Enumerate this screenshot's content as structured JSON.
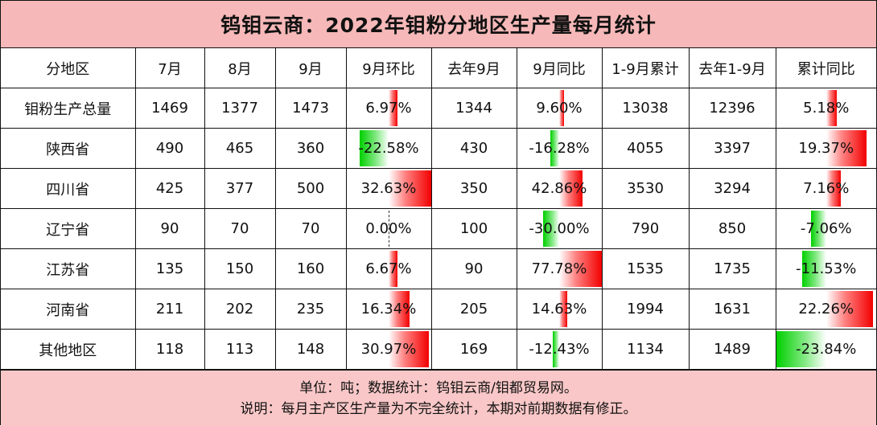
{
  "title": "钨钼云商：2022年钼粉分地区生产量每月统计",
  "header": [
    "分地区",
    "7月",
    "8月",
    "9月",
    "9月环比",
    "去年9月",
    "9月同比",
    "1-9月累计",
    "去年1-9月",
    "累计同比"
  ],
  "rows": [
    {
      "region": "钼粉生产总量",
      "m7": "1469",
      "m8": "1377",
      "m9": "1473",
      "mom": "6.97%",
      "ly9": "1344",
      "yoy": "9.60%",
      "cum": "13038",
      "lycum": "12396",
      "cumyoy": "5.18%"
    },
    {
      "region": "陕西省",
      "m7": "490",
      "m8": "465",
      "m9": "360",
      "mom": "-22.58%",
      "ly9": "430",
      "yoy": "-16.28%",
      "cum": "4055",
      "lycum": "3397",
      "cumyoy": "19.37%"
    },
    {
      "region": "四川省",
      "m7": "425",
      "m8": "377",
      "m9": "500",
      "mom": "32.63%",
      "ly9": "350",
      "yoy": "42.86%",
      "cum": "3530",
      "lycum": "3294",
      "cumyoy": "7.16%"
    },
    {
      "region": "辽宁省",
      "m7": "90",
      "m8": "70",
      "m9": "70",
      "mom": "0.00%",
      "ly9": "100",
      "yoy": "-30.00%",
      "cum": "790",
      "lycum": "850",
      "cumyoy": "-7.06%"
    },
    {
      "region": "江苏省",
      "m7": "135",
      "m8": "150",
      "m9": "160",
      "mom": "6.67%",
      "ly9": "90",
      "yoy": "77.78%",
      "cum": "1535",
      "lycum": "1735",
      "cumyoy": "-11.53%"
    },
    {
      "region": "河南省",
      "m7": "211",
      "m8": "202",
      "m9": "235",
      "mom": "16.34%",
      "ly9": "205",
      "yoy": "14.63%",
      "cum": "1994",
      "lycum": "1631",
      "cumyoy": "22.26%"
    },
    {
      "region": "其他地区",
      "m7": "118",
      "m8": "113",
      "m9": "148",
      "mom": "30.97%",
      "ly9": "169",
      "yoy": "-12.43%",
      "cum": "1134",
      "lycum": "1489",
      "cumyoy": "-23.84%"
    }
  ],
  "footer": {
    "line1": "单位：吨；数据统计：钨钼云商/钼都贸易网。",
    "line2": "说明：每月主产区生产量为不完全统计，本期对前期数据有修正。"
  },
  "colors": {
    "positive": "#f20000",
    "negative": "#00d000",
    "title_bg": "#f6b8b8",
    "footer_bg": "#f9c7c7"
  }
}
